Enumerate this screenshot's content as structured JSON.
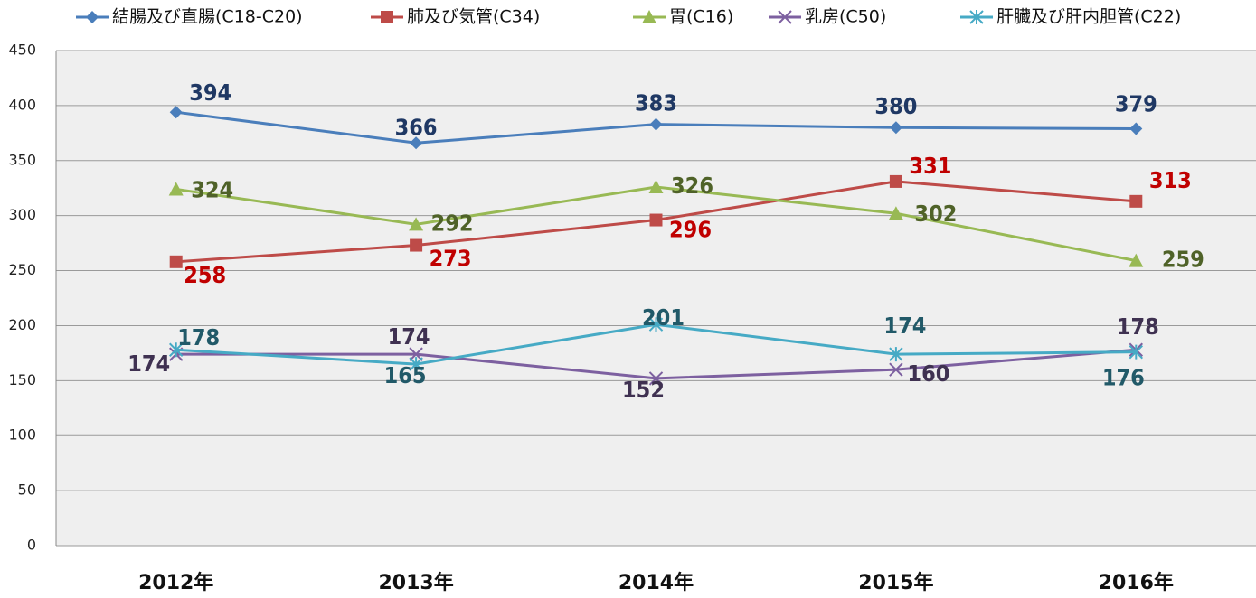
{
  "chart_data": {
    "type": "line",
    "categories": [
      "2012年",
      "2013年",
      "2014年",
      "2015年",
      "2016年"
    ],
    "series": [
      {
        "name": "結腸及び直腸(C18-C20)",
        "color": "#4a7ebb",
        "label_color": "#1f3864",
        "marker": "diamond",
        "values": [
          394,
          366,
          383,
          380,
          379
        ]
      },
      {
        "name": "肺及び気管(C34)",
        "color": "#be4b48",
        "label_color": "#c00000",
        "marker": "square",
        "values": [
          258,
          273,
          296,
          331,
          313
        ]
      },
      {
        "name": "胃(C16)",
        "color": "#98b954",
        "label_color": "#4f6228",
        "marker": "triangle",
        "values": [
          324,
          292,
          326,
          302,
          259
        ]
      },
      {
        "name": "乳房(C50)",
        "color": "#7d60a0",
        "label_color": "#3f3151",
        "marker": "x",
        "values": [
          174,
          174,
          152,
          160,
          178
        ]
      },
      {
        "name": "肝臓及び肝内胆管(C22)",
        "color": "#46aac5",
        "label_color": "#215968",
        "marker": "star",
        "values": [
          178,
          165,
          201,
          174,
          176
        ]
      }
    ],
    "ylim": [
      0,
      450
    ],
    "yticks": [
      0,
      50,
      100,
      150,
      200,
      250,
      300,
      350,
      400,
      450
    ],
    "grid": true,
    "legend": "top"
  }
}
